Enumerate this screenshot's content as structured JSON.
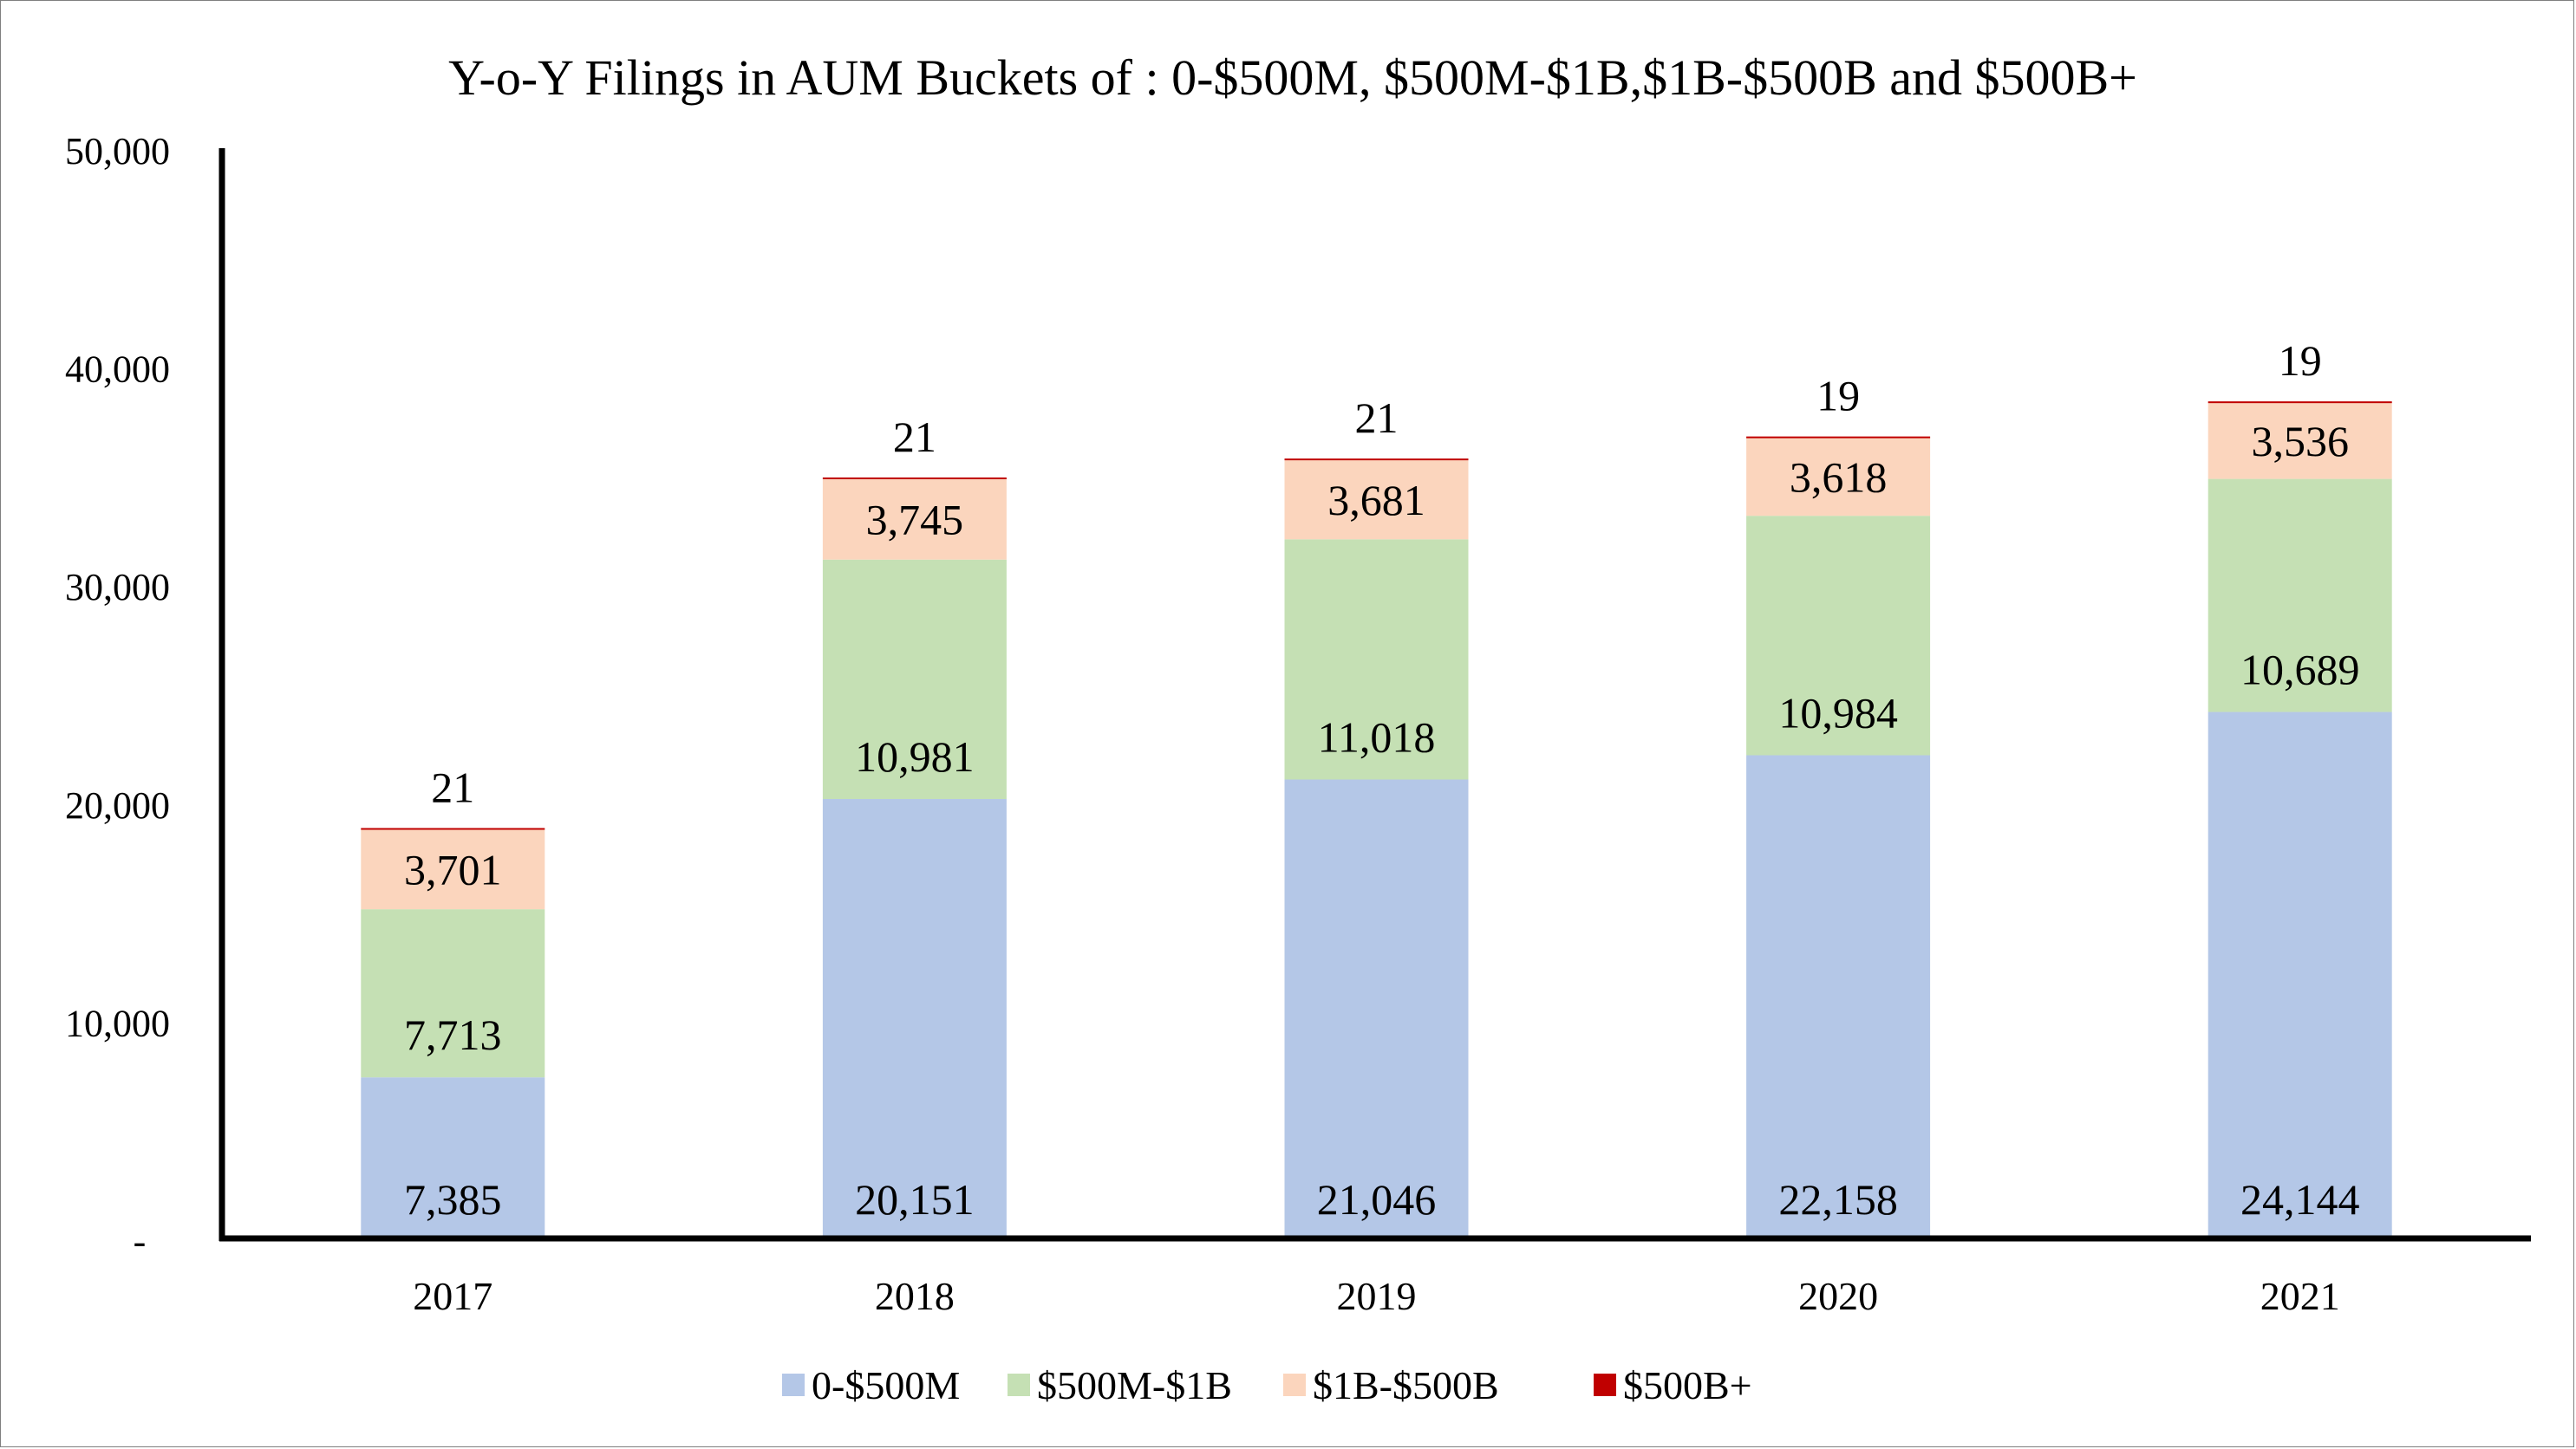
{
  "chart_data": {
    "type": "bar",
    "stacked": true,
    "title": "Y-o-Y Filings in AUM Buckets of : 0-$500M, $500M-$1B,$1B-$500B and $500B+",
    "xlabel": "",
    "ylabel": "",
    "categories": [
      "2017",
      "2018",
      "2019",
      "2020",
      "2021"
    ],
    "ylim": [
      0,
      50000
    ],
    "yticks": [
      0,
      10000,
      20000,
      30000,
      40000,
      50000
    ],
    "ytick_labels": [
      "-",
      "10,000",
      "20,000",
      "30,000",
      "40,000",
      "50,000"
    ],
    "grid": false,
    "legend_position": "bottom",
    "series": [
      {
        "name": "0-$500M",
        "color": "#b4c7e7",
        "values": [
          7385,
          20151,
          21046,
          22158,
          24144
        ],
        "labels": [
          "7,385",
          "20,151",
          "21,046",
          "22,158",
          "24,144"
        ]
      },
      {
        "name": "$500M-$1B",
        "color": "#c5e0b4",
        "values": [
          7713,
          10981,
          11018,
          10984,
          10689
        ],
        "labels": [
          "7,713",
          "10,981",
          "11,018",
          "10,984",
          "10,689"
        ]
      },
      {
        "name": "$1B-$500B",
        "color": "#fbd5bd",
        "values": [
          3701,
          3745,
          3681,
          3618,
          3536
        ],
        "labels": [
          "3,701",
          "3,745",
          "3,681",
          "3,618",
          "3,536"
        ]
      },
      {
        "name": "$500B+",
        "color": "#c00000",
        "values": [
          21,
          21,
          21,
          19,
          19
        ],
        "labels": [
          "21",
          "21",
          "21",
          "19",
          "19"
        ]
      }
    ]
  }
}
